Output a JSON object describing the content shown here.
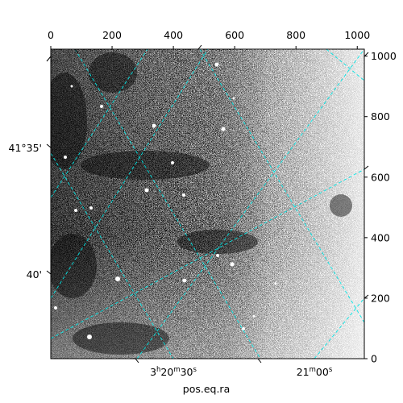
{
  "chart_data": {
    "type": "heatmap",
    "title": "",
    "image_description_colormap": "gray",
    "xlabel": "pos.eq.ra",
    "ylabel": "",
    "pixel_axis_x": {
      "ticks": [
        0,
        200,
        400,
        600,
        800,
        1000
      ],
      "range": [
        0,
        1023
      ]
    },
    "pixel_axis_y": {
      "ticks": [
        0,
        200,
        400,
        600,
        800,
        1000
      ],
      "range": [
        0,
        1023
      ]
    },
    "ra_ticks": [
      {
        "label_main": "3",
        "label_h": "h",
        "label_mid": "20",
        "label_m": "m",
        "label_end": "30",
        "label_s": "s"
      },
      {
        "label_main": "21",
        "label_h": "",
        "label_mid": "",
        "label_m": "m",
        "label_end": "00",
        "label_s": "s"
      }
    ],
    "dec_ticks": [
      {
        "label": "41°35'"
      },
      {
        "label": "40'"
      }
    ],
    "grid": true,
    "grid_color": "#00e5e5",
    "frame_color": "#000000"
  }
}
